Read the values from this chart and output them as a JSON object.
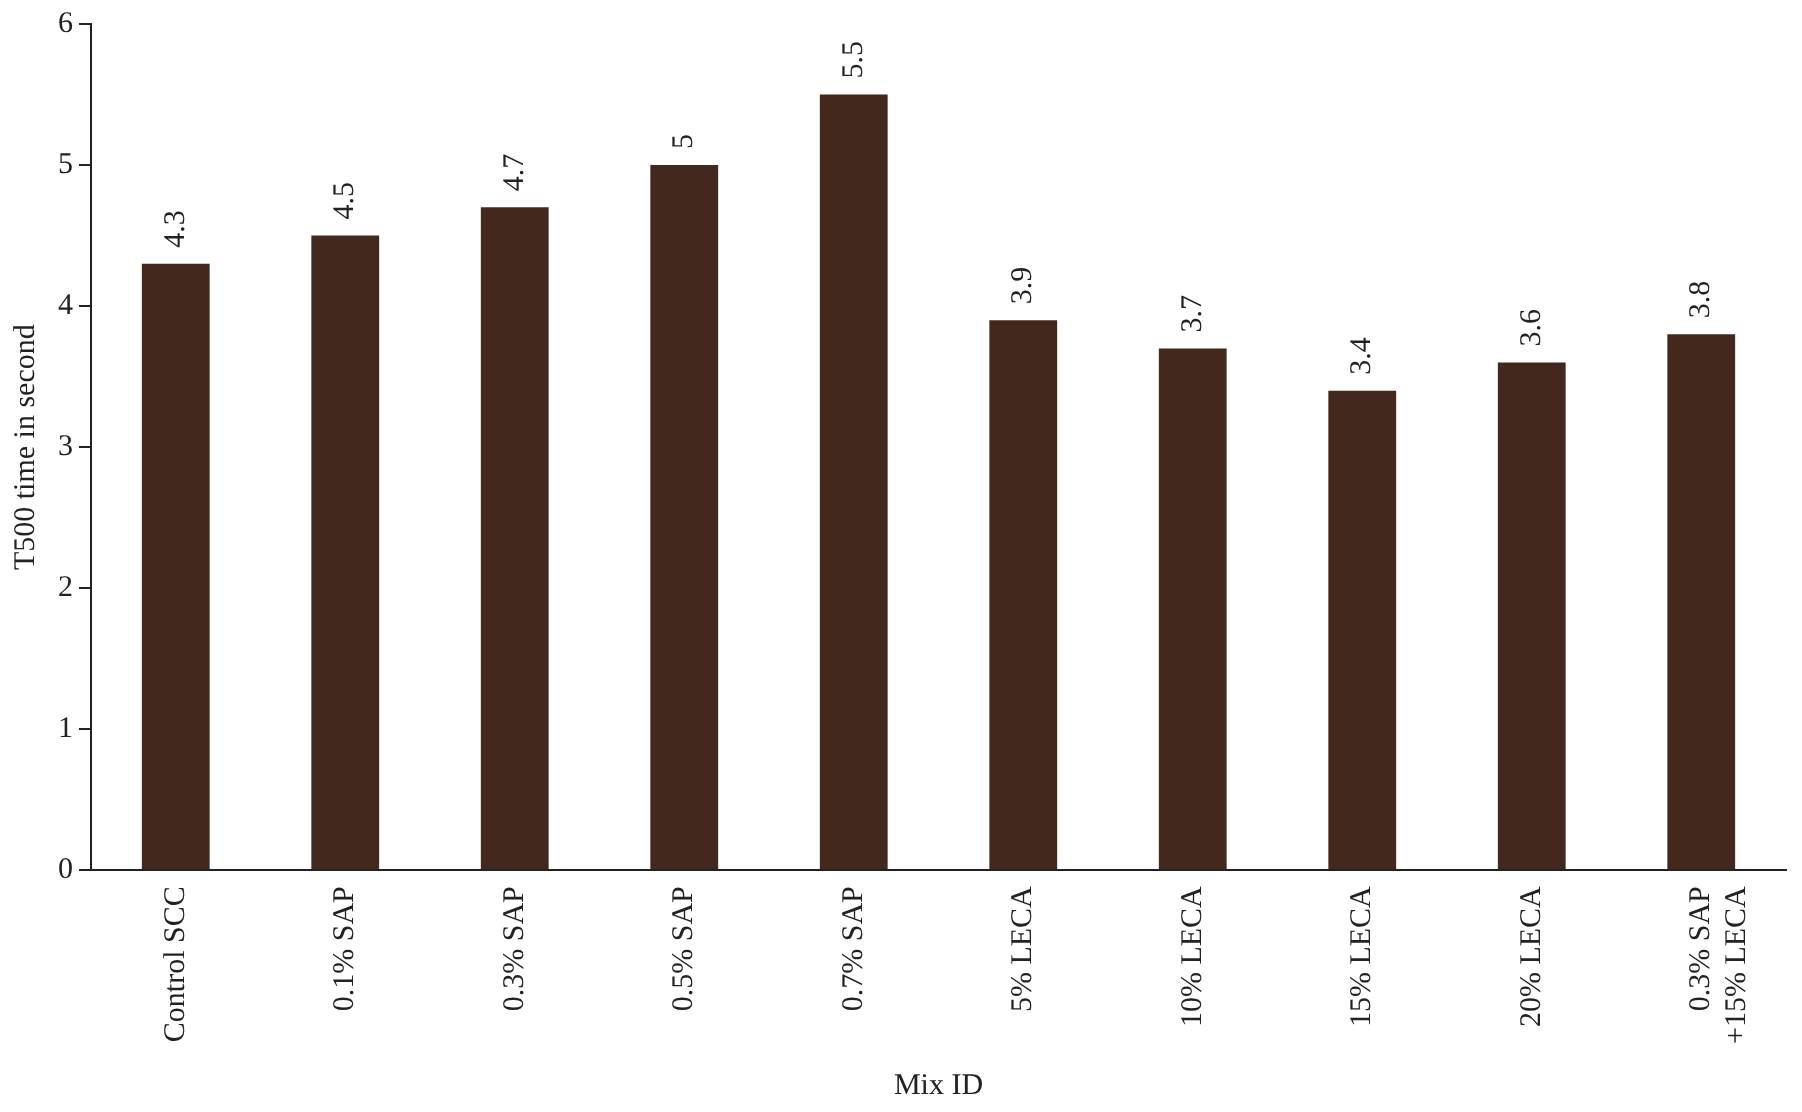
{
  "chart_data": {
    "type": "bar",
    "xlabel": "Mix ID",
    "ylabel": "T500 time in second",
    "categories": [
      "Control SCC",
      "0.1% SAP",
      "0.3% SAP",
      "0.5% SAP",
      "0.7% SAP",
      "5% LECA",
      "10% LECA",
      "15% LECA",
      "20% LECA",
      "0.3% SAP +15% LECA"
    ],
    "values": [
      4.3,
      4.5,
      4.7,
      5,
      5.5,
      3.9,
      3.7,
      3.4,
      3.6,
      3.8
    ],
    "color": "#43291d",
    "ylim": [
      0,
      6
    ],
    "yticks": [
      0,
      1,
      2,
      3,
      4,
      5,
      6
    ],
    "grid": false,
    "legend": false,
    "data_labels": true
  }
}
